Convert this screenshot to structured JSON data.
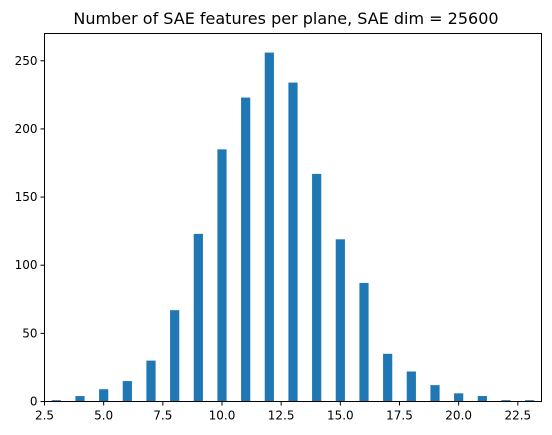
{
  "chart_data": {
    "type": "bar",
    "title": "Number of SAE features per plane, SAE dim = 25600",
    "xlabel": "",
    "ylabel": "",
    "xlim": [
      2.5,
      23.5
    ],
    "ylim": [
      0,
      270
    ],
    "bar_color": "#1f77b4",
    "grid": false,
    "x_ticks": [
      {
        "value": 2.5,
        "label": "2.5"
      },
      {
        "value": 5.0,
        "label": "5.0"
      },
      {
        "value": 7.5,
        "label": "7.5"
      },
      {
        "value": 10.0,
        "label": "10.0"
      },
      {
        "value": 12.5,
        "label": "12.5"
      },
      {
        "value": 15.0,
        "label": "15.0"
      },
      {
        "value": 17.5,
        "label": "17.5"
      },
      {
        "value": 20.0,
        "label": "20.0"
      },
      {
        "value": 22.5,
        "label": "22.5"
      }
    ],
    "y_ticks": [
      {
        "value": 0,
        "label": "0"
      },
      {
        "value": 50,
        "label": "50"
      },
      {
        "value": 100,
        "label": "100"
      },
      {
        "value": 150,
        "label": "150"
      },
      {
        "value": 200,
        "label": "200"
      },
      {
        "value": 250,
        "label": "250"
      }
    ],
    "x": [
      3,
      4,
      5,
      6,
      7,
      8,
      9,
      10,
      11,
      12,
      13,
      14,
      15,
      16,
      17,
      18,
      19,
      20,
      21,
      22,
      23
    ],
    "values": [
      1,
      4,
      9,
      15,
      30,
      67,
      123,
      185,
      223,
      256,
      234,
      167,
      119,
      87,
      35,
      22,
      12,
      6,
      4,
      1,
      1
    ]
  }
}
